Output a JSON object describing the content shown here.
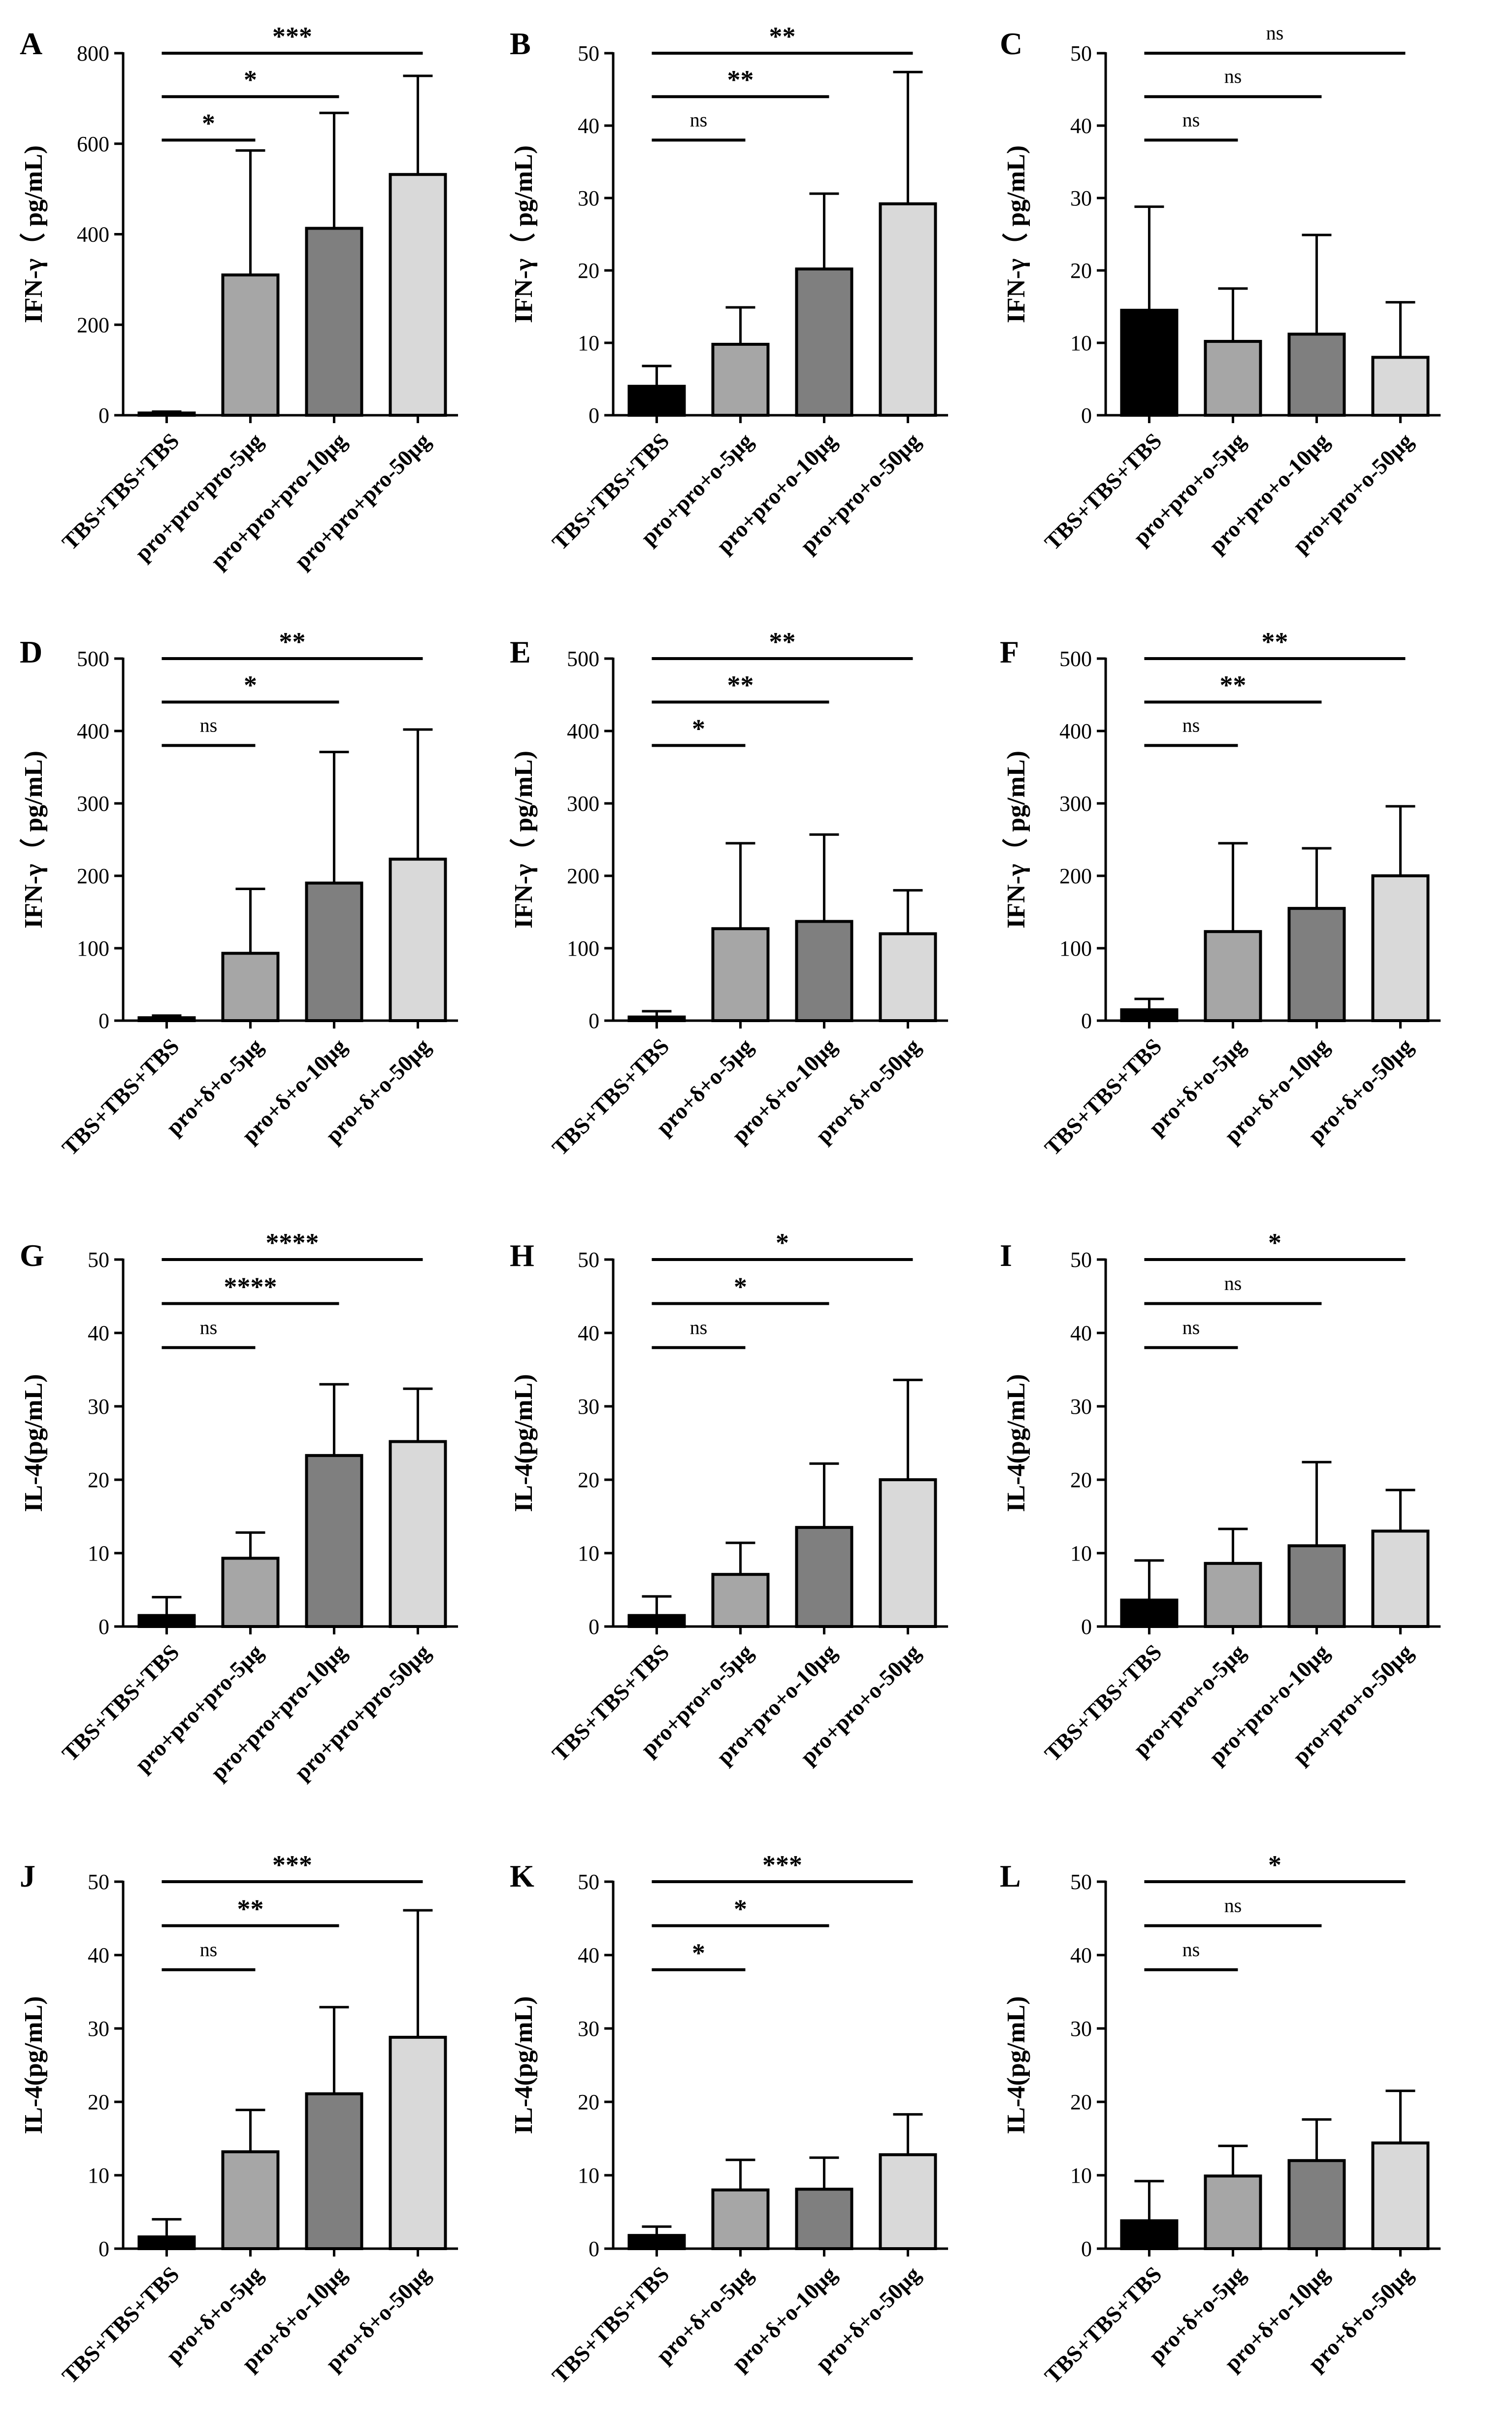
{
  "figure": {
    "colors": [
      "#000000",
      "#a6a6a6",
      "#7f7f7f",
      "#d9d9d9"
    ]
  },
  "chart_data": [
    {
      "panel": "A",
      "type": "bar",
      "ylabel": "IFN-γ（ pg/mL)",
      "ylim": [
        0,
        800
      ],
      "yticks": [
        0,
        200,
        400,
        600,
        800
      ],
      "categories": [
        "TBS+TBS+TBS",
        "pro+pro+pro-5μg",
        "pro+pro+pro-10μg",
        "pro+pro+pro-50μg"
      ],
      "values": [
        5,
        310,
        413,
        532
      ],
      "errors": [
        3,
        275,
        255,
        218
      ],
      "comparisons": [
        {
          "from": 0,
          "to": 1,
          "label": "*"
        },
        {
          "from": 0,
          "to": 2,
          "label": "*"
        },
        {
          "from": 0,
          "to": 3,
          "label": "***"
        }
      ]
    },
    {
      "panel": "B",
      "type": "bar",
      "ylabel": "IFN-γ（ pg/mL)",
      "ylim": [
        0,
        50
      ],
      "yticks": [
        0,
        10,
        20,
        30,
        40,
        50
      ],
      "categories": [
        "TBS+TBS+TBS",
        "pro+pro+o-5μg",
        "pro+pro+o-10μg",
        "pro+pro+o-50μg"
      ],
      "values": [
        4,
        9.8,
        20.2,
        29.2
      ],
      "errors": [
        2.8,
        5.1,
        10.4,
        18.2
      ],
      "comparisons": [
        {
          "from": 0,
          "to": 1,
          "label": "ns"
        },
        {
          "from": 0,
          "to": 2,
          "label": "**"
        },
        {
          "from": 0,
          "to": 3,
          "label": "**"
        }
      ]
    },
    {
      "panel": "C",
      "type": "bar",
      "ylabel": "IFN-γ（ pg/mL)",
      "ylim": [
        0,
        50
      ],
      "yticks": [
        0,
        10,
        20,
        30,
        40,
        50
      ],
      "categories": [
        "TBS+TBS+TBS",
        "pro+pro+o-5μg",
        "pro+pro+o-10μg",
        "pro+pro+o-50μg"
      ],
      "values": [
        14.5,
        10.2,
        11.2,
        8
      ],
      "errors": [
        14.3,
        7.3,
        13.7,
        7.6
      ],
      "comparisons": [
        {
          "from": 0,
          "to": 1,
          "label": "ns"
        },
        {
          "from": 0,
          "to": 2,
          "label": "ns"
        },
        {
          "from": 0,
          "to": 3,
          "label": "ns"
        }
      ]
    },
    {
      "panel": "D",
      "type": "bar",
      "ylabel": "IFN-γ（ pg/mL)",
      "ylim": [
        0,
        500
      ],
      "yticks": [
        0,
        100,
        200,
        300,
        400,
        500
      ],
      "categories": [
        "TBS+TBS+TBS",
        "pro+δ+o-5μg",
        "pro+δ+o-10μg",
        "pro+δ+o-50μg"
      ],
      "values": [
        4,
        93,
        190,
        223
      ],
      "errors": [
        3,
        89,
        181,
        179
      ],
      "comparisons": [
        {
          "from": 0,
          "to": 1,
          "label": "ns"
        },
        {
          "from": 0,
          "to": 2,
          "label": "*"
        },
        {
          "from": 0,
          "to": 3,
          "label": "**"
        }
      ]
    },
    {
      "panel": "E",
      "type": "bar",
      "ylabel": "IFN-γ（ pg/mL)",
      "ylim": [
        0,
        500
      ],
      "yticks": [
        0,
        100,
        200,
        300,
        400,
        500
      ],
      "categories": [
        "TBS+TBS+TBS",
        "pro+δ+o-5μg",
        "pro+δ+o-10μg",
        "pro+δ+o-50μg"
      ],
      "values": [
        5,
        127,
        137,
        120
      ],
      "errors": [
        8,
        118,
        120,
        60
      ],
      "comparisons": [
        {
          "from": 0,
          "to": 1,
          "label": "*"
        },
        {
          "from": 0,
          "to": 2,
          "label": "**"
        },
        {
          "from": 0,
          "to": 3,
          "label": "**"
        }
      ]
    },
    {
      "panel": "F",
      "type": "bar",
      "ylabel": "IFN-γ（ pg/mL)",
      "ylim": [
        0,
        500
      ],
      "yticks": [
        0,
        100,
        200,
        300,
        400,
        500
      ],
      "categories": [
        "TBS+TBS+TBS",
        "pro+δ+o-5μg",
        "pro+δ+o-10μg",
        "pro+δ+o-50μg"
      ],
      "values": [
        15,
        123,
        155,
        200
      ],
      "errors": [
        15,
        122,
        83,
        96
      ],
      "comparisons": [
        {
          "from": 0,
          "to": 1,
          "label": "ns"
        },
        {
          "from": 0,
          "to": 2,
          "label": "**"
        },
        {
          "from": 0,
          "to": 3,
          "label": "**"
        }
      ]
    },
    {
      "panel": "G",
      "type": "bar",
      "ylabel": "IL-4(pg/mL)",
      "ylim": [
        0,
        50
      ],
      "yticks": [
        0,
        10,
        20,
        30,
        40,
        50
      ],
      "categories": [
        "TBS+TBS+TBS",
        "pro+pro+pro-5μg",
        "pro+pro+pro-10μg",
        "pro+pro+pro-50μg"
      ],
      "values": [
        1.5,
        9.3,
        23.3,
        25.2
      ],
      "errors": [
        2.5,
        3.5,
        9.7,
        7.2
      ],
      "comparisons": [
        {
          "from": 0,
          "to": 1,
          "label": "ns"
        },
        {
          "from": 0,
          "to": 2,
          "label": "****"
        },
        {
          "from": 0,
          "to": 3,
          "label": "****"
        }
      ]
    },
    {
      "panel": "H",
      "type": "bar",
      "ylabel": "IL-4(pg/mL)",
      "ylim": [
        0,
        50
      ],
      "yticks": [
        0,
        10,
        20,
        30,
        40,
        50
      ],
      "categories": [
        "TBS+TBS+TBS",
        "pro+pro+o-5μg",
        "pro+pro+o-10μg",
        "pro+pro+o-50μg"
      ],
      "values": [
        1.5,
        7.1,
        13.5,
        20
      ],
      "errors": [
        2.6,
        4.3,
        8.7,
        13.6
      ],
      "comparisons": [
        {
          "from": 0,
          "to": 1,
          "label": "ns"
        },
        {
          "from": 0,
          "to": 2,
          "label": "*"
        },
        {
          "from": 0,
          "to": 3,
          "label": "*"
        }
      ]
    },
    {
      "panel": "I",
      "type": "bar",
      "ylabel": "IL-4(pg/mL)",
      "ylim": [
        0,
        50
      ],
      "yticks": [
        0,
        10,
        20,
        30,
        40,
        50
      ],
      "categories": [
        "TBS+TBS+TBS",
        "pro+pro+o-5μg",
        "pro+pro+o-10μg",
        "pro+pro+o-50μg"
      ],
      "values": [
        3.6,
        8.6,
        11,
        13
      ],
      "errors": [
        5.4,
        4.7,
        11.4,
        5.6
      ],
      "comparisons": [
        {
          "from": 0,
          "to": 1,
          "label": "ns"
        },
        {
          "from": 0,
          "to": 2,
          "label": "ns"
        },
        {
          "from": 0,
          "to": 3,
          "label": "*"
        }
      ]
    },
    {
      "panel": "J",
      "type": "bar",
      "ylabel": "IL-4(pg/mL)",
      "ylim": [
        0,
        50
      ],
      "yticks": [
        0,
        10,
        20,
        30,
        40,
        50
      ],
      "categories": [
        "TBS+TBS+TBS",
        "pro+δ+o-5μg",
        "pro+δ+o-10μg",
        "pro+δ+o-50μg"
      ],
      "values": [
        1.6,
        13.2,
        21.1,
        28.8
      ],
      "errors": [
        2.4,
        5.7,
        11.8,
        17.3
      ],
      "comparisons": [
        {
          "from": 0,
          "to": 1,
          "label": "ns"
        },
        {
          "from": 0,
          "to": 2,
          "label": "**"
        },
        {
          "from": 0,
          "to": 3,
          "label": "***"
        }
      ]
    },
    {
      "panel": "K",
      "type": "bar",
      "ylabel": "IL-4(pg/mL)",
      "ylim": [
        0,
        50
      ],
      "yticks": [
        0,
        10,
        20,
        30,
        40,
        50
      ],
      "categories": [
        "TBS+TBS+TBS",
        "pro+δ+o-5μg",
        "pro+δ+o-10μg",
        "pro+δ+o-50μg"
      ],
      "values": [
        1.8,
        8,
        8.1,
        12.8
      ],
      "errors": [
        1.2,
        4.1,
        4.3,
        5.5
      ],
      "comparisons": [
        {
          "from": 0,
          "to": 1,
          "label": "*"
        },
        {
          "from": 0,
          "to": 2,
          "label": "*"
        },
        {
          "from": 0,
          "to": 3,
          "label": "***"
        }
      ]
    },
    {
      "panel": "L",
      "type": "bar",
      "ylabel": "IL-4(pg/mL)",
      "ylim": [
        0,
        50
      ],
      "yticks": [
        0,
        10,
        20,
        30,
        40,
        50
      ],
      "categories": [
        "TBS+TBS+TBS",
        "pro+δ+o-5μg",
        "pro+δ+o-10μg",
        "pro+δ+o-50μg"
      ],
      "values": [
        3.8,
        9.9,
        12,
        14.4
      ],
      "errors": [
        5.4,
        4.1,
        5.6,
        7.1
      ],
      "comparisons": [
        {
          "from": 0,
          "to": 1,
          "label": "ns"
        },
        {
          "from": 0,
          "to": 2,
          "label": "ns"
        },
        {
          "from": 0,
          "to": 3,
          "label": "*"
        }
      ]
    }
  ]
}
